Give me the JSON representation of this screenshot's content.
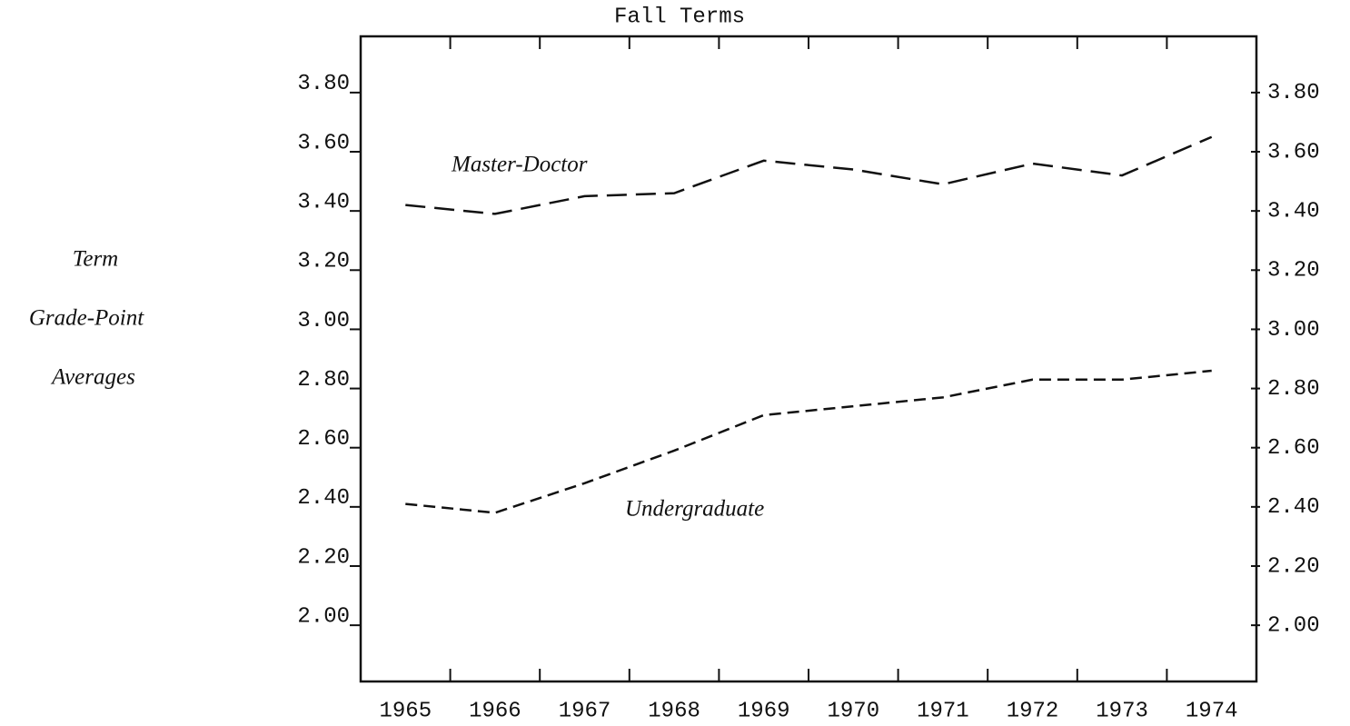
{
  "chart_data": {
    "type": "line",
    "title": "Fall Terms",
    "ylabel": [
      "Term",
      "Grade-Point",
      "Averages"
    ],
    "categories": [
      "1965",
      "1966",
      "1967",
      "1968",
      "1969",
      "1970",
      "1971",
      "1972",
      "1973",
      "1974"
    ],
    "series": [
      {
        "name": "Master-Doctor",
        "color": "#111111",
        "values": [
          3.42,
          3.39,
          3.45,
          3.46,
          3.57,
          3.54,
          3.49,
          3.56,
          3.52,
          3.65
        ]
      },
      {
        "name": "Undergraduate",
        "color": "#111111",
        "values": [
          2.41,
          2.38,
          2.48,
          2.59,
          2.71,
          2.74,
          2.77,
          2.83,
          2.83,
          2.86
        ]
      }
    ],
    "ylim": [
      1.81,
      3.99
    ],
    "yticks": [
      {
        "value": 2.0,
        "label": "2.00"
      },
      {
        "value": 2.2,
        "label": "2.20"
      },
      {
        "value": 2.4,
        "label": "2.40"
      },
      {
        "value": 2.6,
        "label": "2.60"
      },
      {
        "value": 2.8,
        "label": "2.80"
      },
      {
        "value": 3.0,
        "label": "3.00"
      },
      {
        "value": 3.2,
        "label": "3.20"
      },
      {
        "value": 3.4,
        "label": "3.40"
      },
      {
        "value": 3.6,
        "label": "3.60"
      },
      {
        "value": 3.8,
        "label": "3.80"
      }
    ],
    "y2lim": [
      1.81,
      3.99
    ],
    "y2ticks": [
      {
        "value": 2.0,
        "label": "2.00"
      },
      {
        "value": 2.2,
        "label": "2.20"
      },
      {
        "value": 2.4,
        "label": "2.40"
      },
      {
        "value": 2.6,
        "label": "2.60"
      },
      {
        "value": 2.8,
        "label": "2.80"
      },
      {
        "value": 3.0,
        "label": "3.00"
      },
      {
        "value": 3.2,
        "label": "3.20"
      },
      {
        "value": 3.4,
        "label": "3.40"
      },
      {
        "value": 3.6,
        "label": "3.60"
      },
      {
        "value": 3.8,
        "label": "3.80"
      }
    ],
    "grid": false
  }
}
